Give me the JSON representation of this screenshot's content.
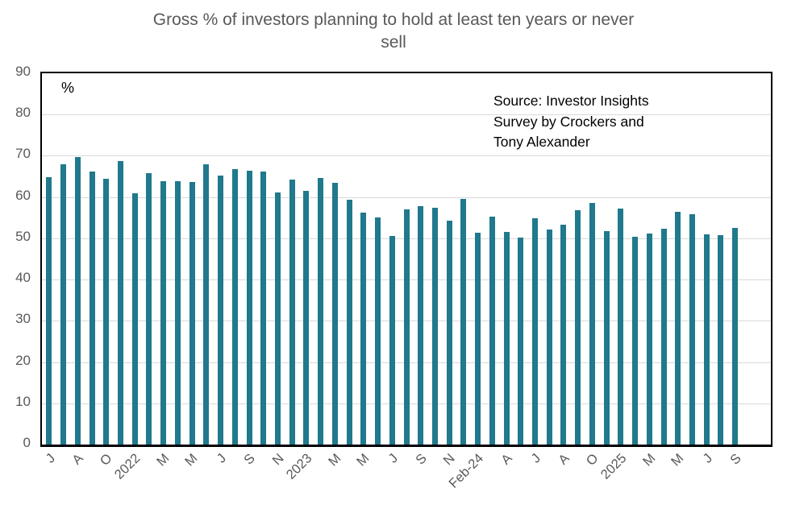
{
  "chart_data": {
    "type": "bar",
    "title": "Gross % of investors planning to hold at least ten years or never sell",
    "title_lines": [
      "Gross % of investors planning to hold at least ten years or never",
      "sell"
    ],
    "unit_label": "%",
    "source_note_lines": [
      "Source: Investor Insights",
      "Survey by Crockers and",
      "Tony Alexander"
    ],
    "xlabel": "",
    "ylabel": "%",
    "ylim": [
      0,
      90
    ],
    "ytick_step": 10,
    "grid": "horizontal-only",
    "legend": "none",
    "bar_color": "#20798C",
    "axis_text_color": "#595959",
    "gridline_color": "#d9d9d9",
    "x_tick_labels": [
      "J",
      "A",
      "O",
      "2022",
      "M",
      "M",
      "J",
      "S",
      "N",
      "2023",
      "M",
      "M",
      "J",
      "S",
      "N",
      "Feb-24",
      "A",
      "J",
      "A",
      "O",
      "2025",
      "M",
      "M",
      "J",
      "S"
    ],
    "x_tick_label_every_n_bars": 2,
    "values": [
      64.9,
      67.9,
      69.7,
      66.2,
      64.5,
      68.8,
      61.0,
      65.8,
      63.8,
      63.8,
      63.6,
      67.9,
      65.3,
      66.7,
      66.4,
      66.1,
      61.1,
      64.2,
      61.5,
      64.7,
      63.5,
      59.3,
      56.3,
      55.1,
      50.6,
      57.1,
      57.7,
      57.4,
      54.2,
      59.5,
      51.4,
      55.2,
      51.5,
      50.1,
      54.8,
      52.1,
      53.3,
      56.8,
      58.6,
      51.8,
      57.3,
      50.4,
      51.2,
      52.4,
      56.5,
      55.8,
      51.0,
      50.8,
      52.6
    ]
  }
}
